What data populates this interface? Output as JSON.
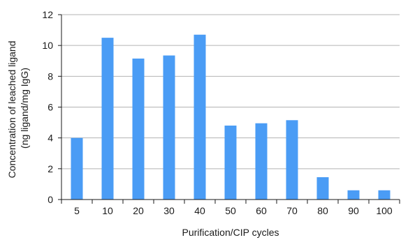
{
  "chart_data": {
    "type": "bar",
    "title": "",
    "xlabel": "Purification/CIP cycles",
    "ylabel_lines": [
      "Concentration of leached ligand",
      "(ng ligand/mg IgG)"
    ],
    "categories": [
      "5",
      "10",
      "20",
      "30",
      "40",
      "50",
      "60",
      "70",
      "80",
      "90",
      "100"
    ],
    "values": [
      4.0,
      10.5,
      9.15,
      9.35,
      10.7,
      4.8,
      4.95,
      5.15,
      1.45,
      0.6,
      0.6
    ],
    "ylim": [
      0,
      12
    ],
    "yticks": [
      "0",
      "2",
      "4",
      "6",
      "8",
      "10",
      "12"
    ],
    "grid": true,
    "bar_color": "#4a9cf5",
    "grid_color": "#b3b3b3"
  }
}
